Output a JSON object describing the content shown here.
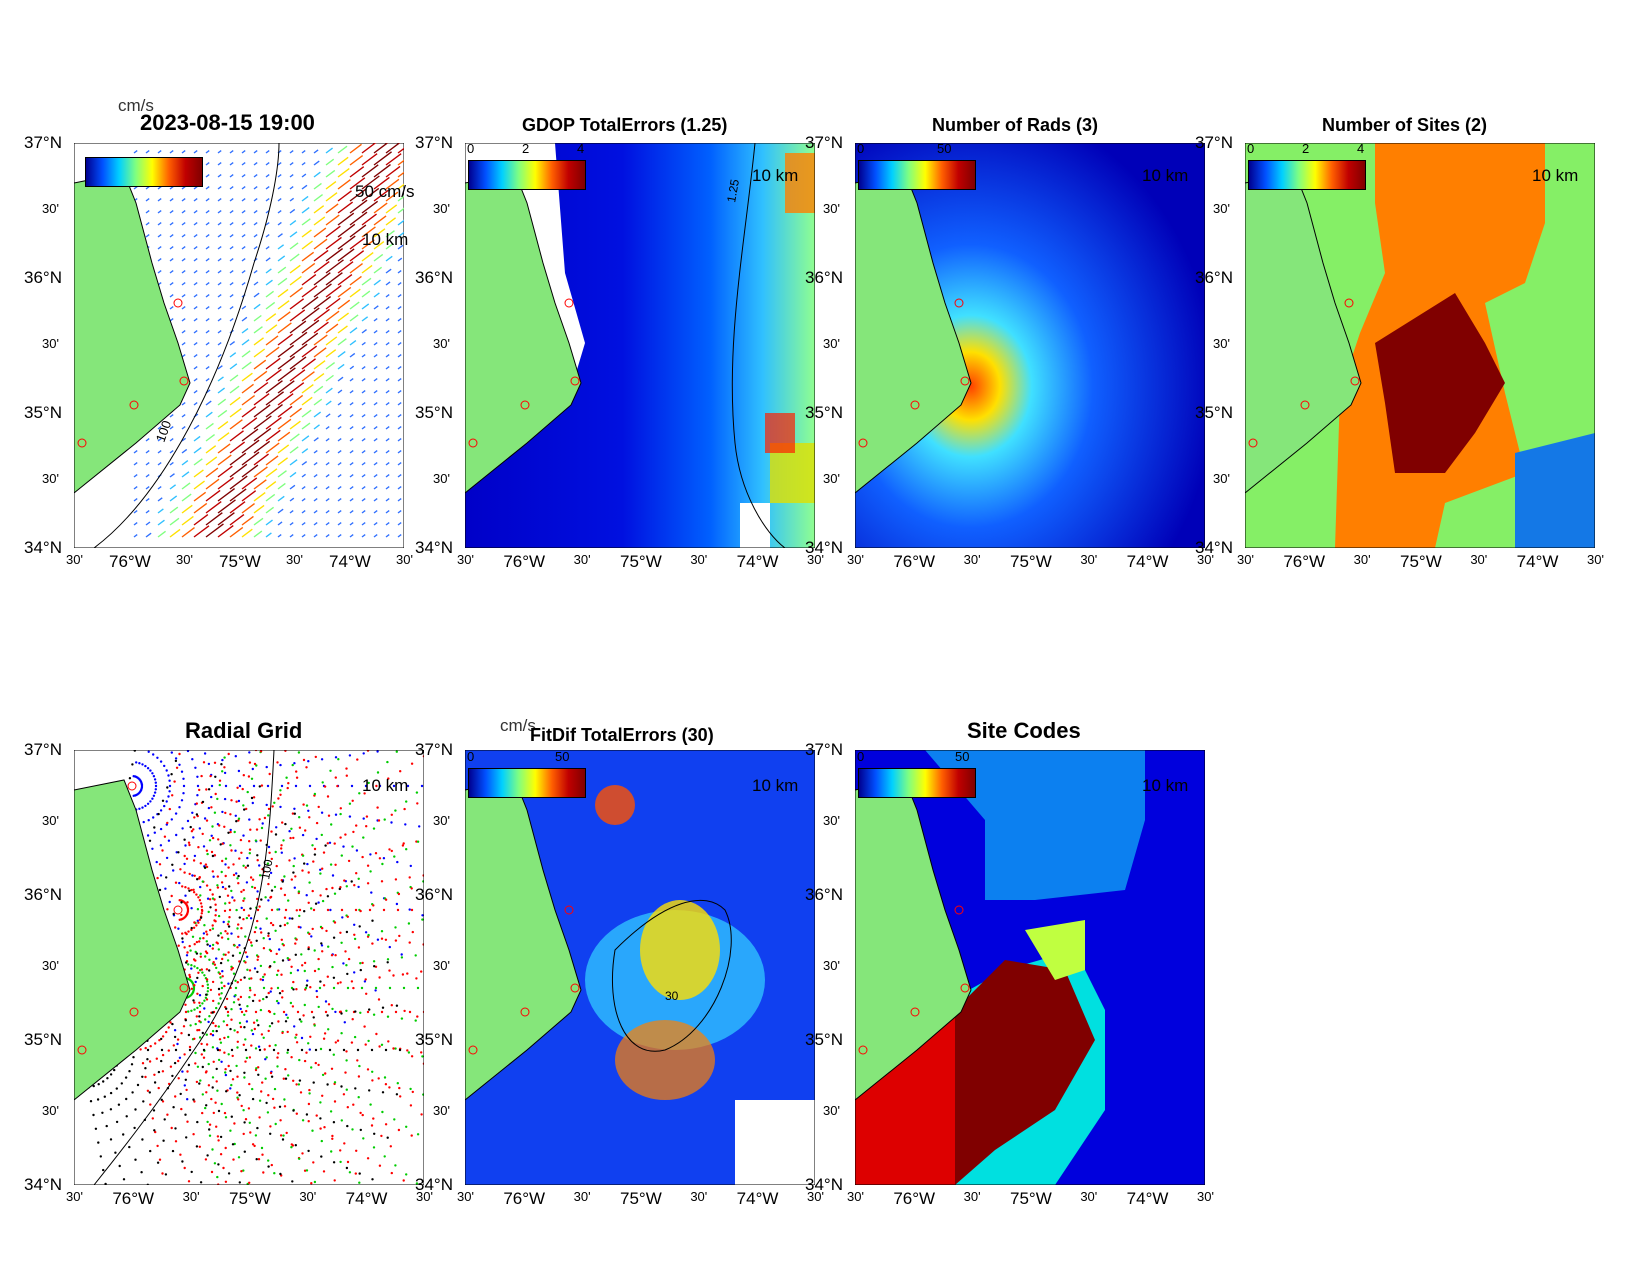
{
  "lat_ticks": [
    "37°N",
    "30'",
    "36°N",
    "30'",
    "35°N",
    "30'",
    "34°N"
  ],
  "lon_ticks": [
    "30'",
    "76°W",
    "30'",
    "75°W",
    "30'",
    "74°W",
    "30'"
  ],
  "scale_label": "10 km",
  "timestamp": "2023-08-15 19:00",
  "panels": {
    "current": {
      "unit": "cm/s",
      "arrow_label": "50 cm/s",
      "contour_label": "100",
      "cbar_ticks": []
    },
    "gdop": {
      "title": "GDOP TotalErrors (1.25)",
      "cbar_ticks": [
        "0",
        "2",
        "4"
      ],
      "contour_label": "1.25"
    },
    "rads": {
      "title": "Number of Rads (3)",
      "cbar_ticks": [
        "0",
        "50"
      ]
    },
    "sites": {
      "title": "Number of Sites (2)",
      "cbar_ticks": [
        "0",
        "2",
        "4"
      ]
    },
    "radial": {
      "title": "Radial Grid",
      "contour_label": "100"
    },
    "fitdif": {
      "title": "FitDif TotalErrors (30)",
      "unit": "cm/s",
      "cbar_ticks": [
        "0",
        "50"
      ],
      "contour_label": "30"
    },
    "sitecodes": {
      "title": "Site Codes",
      "cbar_ticks": [
        "0",
        "50"
      ]
    }
  },
  "colors": {
    "land": "#85e67a",
    "coast": "#000000",
    "site_marker": "#ff0000",
    "field_low": "#0000cc",
    "field_high": "#800000",
    "sites_orange": "#ff7f00",
    "sites_green": "#85ef66",
    "sites_blue": "#1478e6"
  }
}
